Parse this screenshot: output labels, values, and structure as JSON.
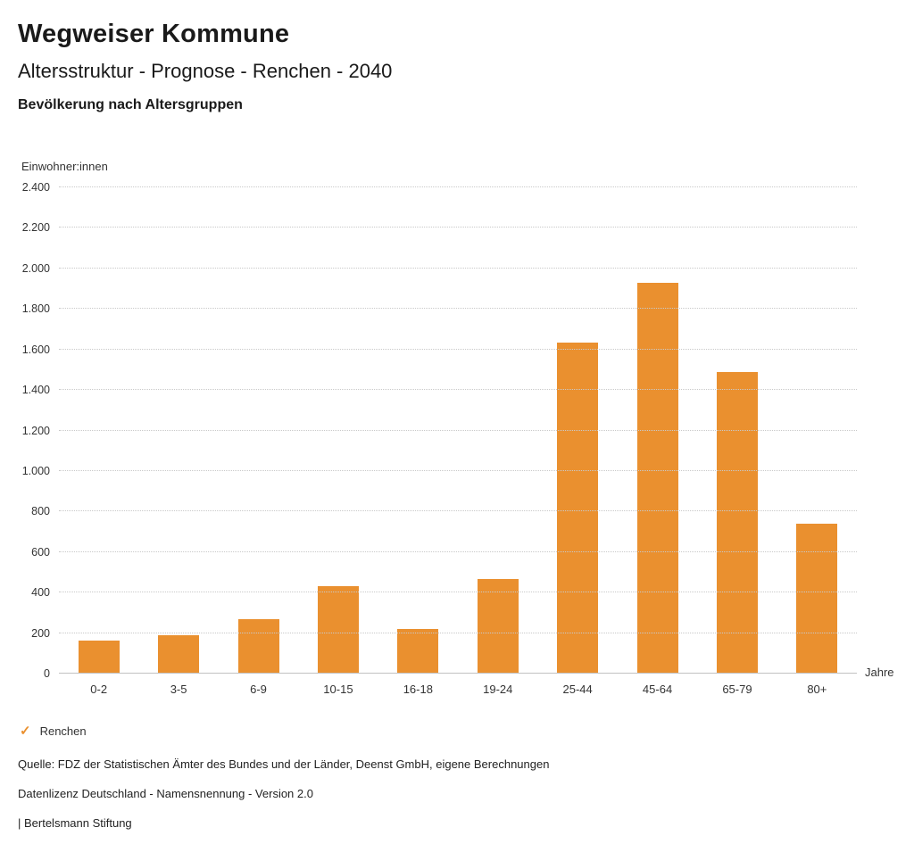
{
  "page": {
    "title": "Wegweiser Kommune",
    "subtitle": "Altersstruktur - Prognose - Renchen - 2040",
    "chart_heading": "Bevölkerung nach Altersgruppen"
  },
  "chart_data": {
    "type": "bar",
    "title": "Bevölkerung nach Altersgruppen",
    "unit_label": "Einwohner:innen",
    "xlabel": "Jahre",
    "categories": [
      "0-2",
      "3-5",
      "6-9",
      "10-15",
      "16-18",
      "19-24",
      "25-44",
      "45-64",
      "65-79",
      "80+"
    ],
    "series": [
      {
        "name": "Renchen",
        "values": [
          165,
          190,
          270,
          430,
          220,
          465,
          1635,
          1930,
          1490,
          740
        ]
      }
    ],
    "ylim": [
      0,
      2400
    ],
    "ytick_step": 200,
    "ytick_labels": [
      "0",
      "200",
      "400",
      "600",
      "800",
      "1.000",
      "1.200",
      "1.400",
      "1.600",
      "1.800",
      "2.000",
      "2.200",
      "2.400"
    ],
    "grid": true,
    "gridline_style": "dotted",
    "legend_position": "bottom-left",
    "bar_color": "#EA902F"
  },
  "legend": {
    "items": [
      {
        "label": "Renchen",
        "color": "#EA902F",
        "icon": "check"
      }
    ]
  },
  "footer": {
    "source": "Quelle: FDZ der Statistischen Ämter des Bundes und der Länder, Deenst GmbH, eigene Berechnungen",
    "license": "Datenlizenz Deutschland - Namensnennung - Version 2.0",
    "brand": "| Bertelsmann Stiftung"
  }
}
